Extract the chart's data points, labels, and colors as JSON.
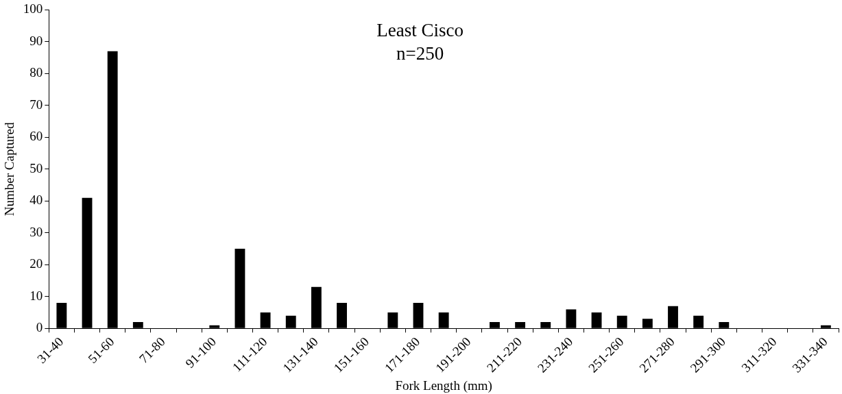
{
  "chart_data": {
    "type": "bar",
    "title": "Least Cisco",
    "subtitle": "n=250",
    "xlabel": "Fork Length (mm)",
    "ylabel": "Number Captured",
    "categories": [
      "31-40",
      null,
      "51-60",
      null,
      "71-80",
      null,
      "91-100",
      null,
      "111-120",
      null,
      "131-140",
      null,
      "151-160",
      null,
      "171-180",
      null,
      "191-200",
      null,
      "211-220",
      null,
      "231-240",
      null,
      "251-260",
      null,
      "271-280",
      null,
      "291-300",
      null,
      "311-320",
      null,
      "331-340"
    ],
    "values": [
      8,
      41,
      87,
      2,
      0,
      0,
      1,
      25,
      5,
      4,
      13,
      8,
      0,
      5,
      8,
      5,
      0,
      2,
      2,
      2,
      6,
      5,
      4,
      3,
      7,
      4,
      2,
      0,
      0,
      0,
      1
    ],
    "color": "#000000",
    "ylim": [
      0,
      100
    ],
    "yticks": [
      0,
      10,
      20,
      30,
      40,
      50,
      60,
      70,
      80,
      90,
      100
    ],
    "grid": false,
    "legend": false
  }
}
